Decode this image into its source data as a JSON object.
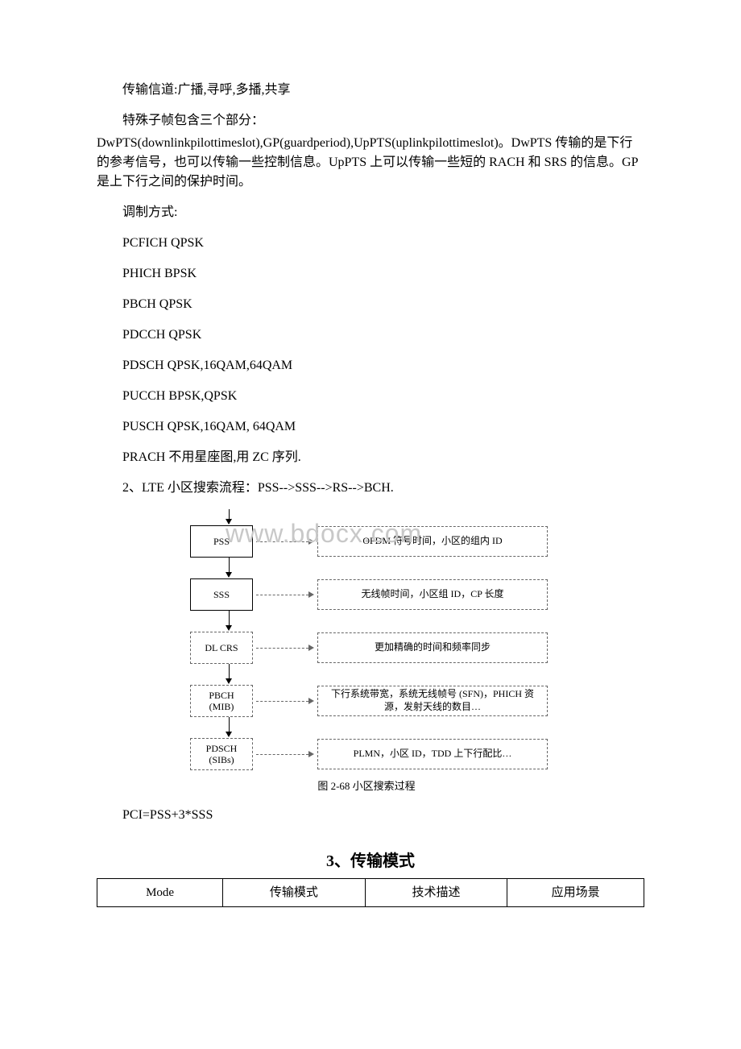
{
  "text": {
    "p1": "传输信道:广播,寻呼,多播,共享",
    "p2": "特殊子帧包含三个部分：",
    "p2b": "DwPTS(downlinkpilottimeslot),GP(guardperiod),UpPTS(uplinkpilottimeslot)。DwPTS 传输的是下行的参考信号，也可以传输一些控制信息。UpPTS 上可以传输一些短的 RACH 和 SRS 的信息。GP 是上下行之间的保护时间。",
    "p3": "调制方式:",
    "m1": "PCFICH QPSK",
    "m2": "PHICH  BPSK",
    "m3": "PBCH  QPSK",
    "m4": "PDCCH QPSK",
    "m5": "PDSCH QPSK,16QAM,64QAM",
    "m6": "PUCCH BPSK,QPSK",
    "m7": "PUSCH  QPSK,16QAM, 64QAM",
    "m8": "PRACH 不用星座图,用 ZC 序列.",
    "p4": "2、LTE 小区搜索流程：PSS-->SSS-->RS-->BCH.",
    "p5": "PCI=PSS+3*SSS",
    "heading": "3、传输模式",
    "watermark": "www.bdocx.com"
  },
  "flowchart": {
    "type": "flowchart",
    "background_color": "#ffffff",
    "node_border_color": "#000000",
    "dashed_color": "#666666",
    "font_size": 12,
    "caption": "图 2-68  小区搜索过程",
    "nodes": [
      {
        "id": "pss",
        "label": "PSS",
        "style": "solid",
        "desc": "OFDM 符号时间，小区的组内 ID"
      },
      {
        "id": "sss",
        "label": "SSS",
        "style": "solid",
        "desc": "无线帧时间，小区组 ID，CP 长度"
      },
      {
        "id": "dlcrs",
        "label": "DL CRS",
        "style": "dashed",
        "desc": "更加精确的时间和频率同步"
      },
      {
        "id": "pbch",
        "label": "PBCH\n(MIB)",
        "style": "dashed",
        "desc": "下行系统带宽，系统无线帧号 (SFN)，PHICH 资源，发射天线的数目…"
      },
      {
        "id": "pdsch",
        "label": "PDSCH\n(SIBs)",
        "style": "dashed",
        "desc": "PLMN，小区 ID，TDD 上下行配比…"
      }
    ]
  },
  "table": {
    "headers": [
      "Mode",
      "传输模式",
      "技术描述",
      "应用场景"
    ],
    "col_widths": [
      "23%",
      "26%",
      "26%",
      "25%"
    ]
  }
}
